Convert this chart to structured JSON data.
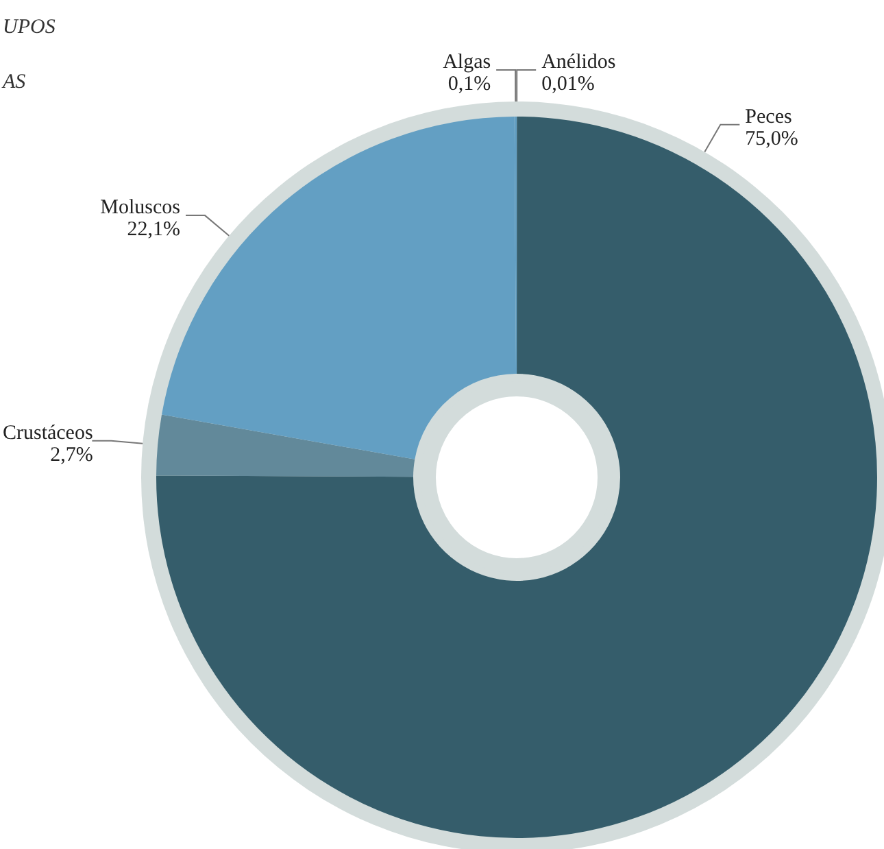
{
  "chart_data": {
    "type": "donut",
    "categories": [
      "Anélidos",
      "Peces",
      "Crustáceos",
      "Moluscos",
      "Algas"
    ],
    "values": [
      0.01,
      75.0,
      2.7,
      22.1,
      0.1
    ],
    "value_labels": [
      "0,01%",
      "75,0%",
      "2,7%",
      "22,1%",
      "0,1%"
    ],
    "colors": [
      "#355d6b",
      "#355d6b",
      "#62899a",
      "#639fc3",
      "#639fc3"
    ],
    "legend": false,
    "annotations": [
      "UPOS",
      "AS"
    ]
  }
}
